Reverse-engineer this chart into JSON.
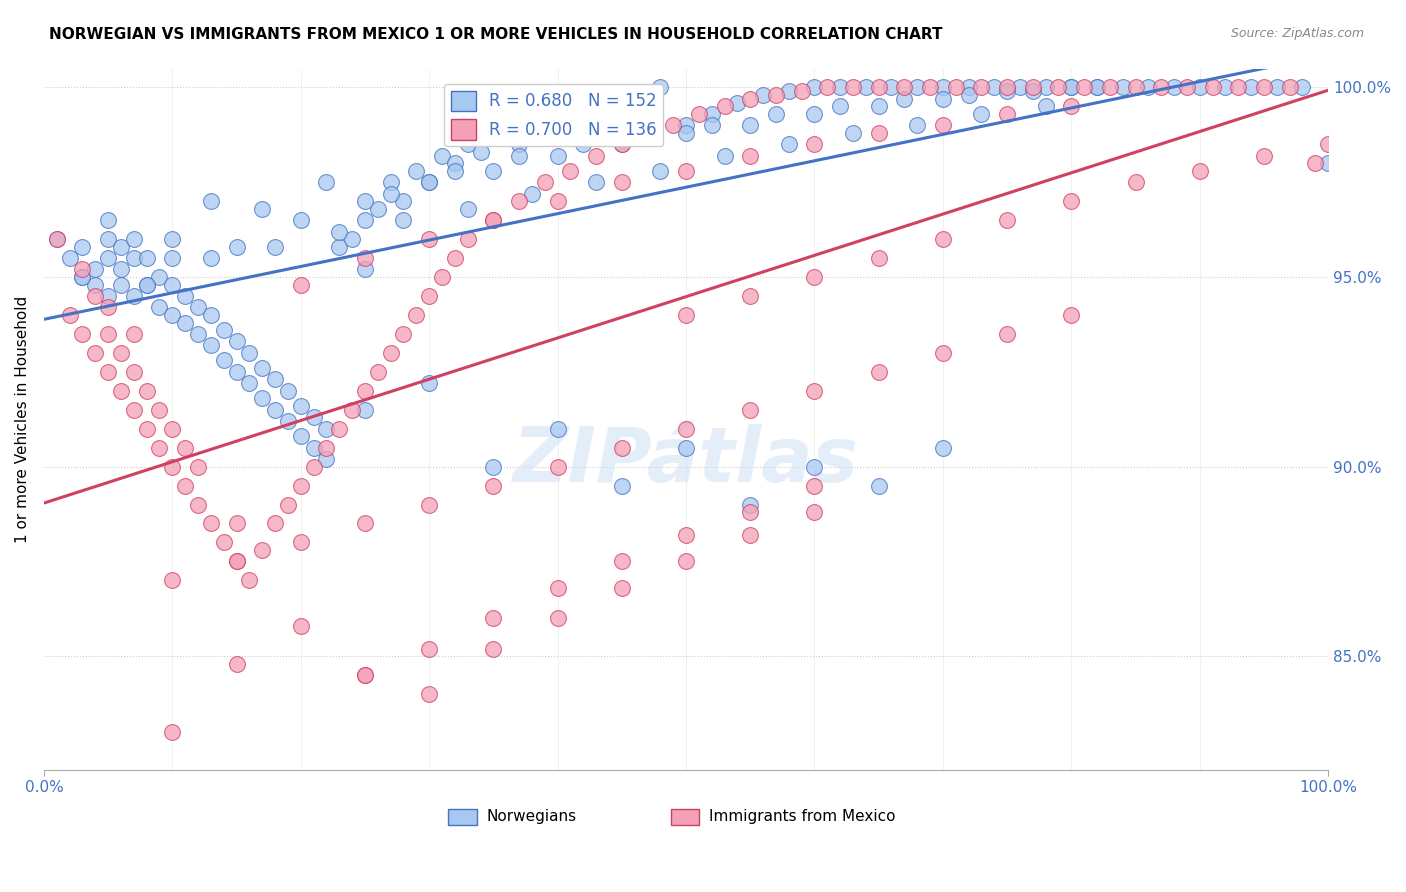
{
  "title": "NORWEGIAN VS IMMIGRANTS FROM MEXICO 1 OR MORE VEHICLES IN HOUSEHOLD CORRELATION CHART",
  "source": "Source: ZipAtlas.com",
  "ylabel": "1 or more Vehicles in Household",
  "xlim": [
    0.0,
    1.0
  ],
  "ylim": [
    0.82,
    1.005
  ],
  "ytick_values": [
    0.85,
    0.9,
    0.95,
    1.0
  ],
  "color_norwegian": "#A8C8F0",
  "color_mexico": "#F4A0B8",
  "color_trendline_norwegian": "#4472C4",
  "color_trendline_mexico": "#D04060",
  "background_color": "#FFFFFF",
  "title_fontsize": 11,
  "source_fontsize": 9,
  "norwegian_x": [
    0.01,
    0.02,
    0.03,
    0.03,
    0.04,
    0.04,
    0.05,
    0.05,
    0.05,
    0.06,
    0.06,
    0.06,
    0.07,
    0.07,
    0.07,
    0.08,
    0.08,
    0.09,
    0.09,
    0.1,
    0.1,
    0.1,
    0.11,
    0.11,
    0.12,
    0.12,
    0.13,
    0.13,
    0.14,
    0.14,
    0.15,
    0.15,
    0.16,
    0.16,
    0.17,
    0.17,
    0.18,
    0.18,
    0.19,
    0.19,
    0.2,
    0.2,
    0.21,
    0.21,
    0.22,
    0.22,
    0.23,
    0.24,
    0.25,
    0.25,
    0.26,
    0.27,
    0.28,
    0.29,
    0.3,
    0.31,
    0.32,
    0.33,
    0.34,
    0.35,
    0.36,
    0.37,
    0.38,
    0.39,
    0.4,
    0.42,
    0.44,
    0.46,
    0.48,
    0.5,
    0.52,
    0.54,
    0.56,
    0.58,
    0.6,
    0.62,
    0.64,
    0.66,
    0.68,
    0.7,
    0.72,
    0.74,
    0.76,
    0.78,
    0.8,
    0.82,
    0.84,
    0.86,
    0.88,
    0.9,
    0.92,
    0.94,
    0.96,
    0.98,
    1.0,
    0.13,
    0.17,
    0.22,
    0.27,
    0.32,
    0.37,
    0.42,
    0.47,
    0.52,
    0.57,
    0.62,
    0.67,
    0.72,
    0.77,
    0.82,
    0.05,
    0.1,
    0.15,
    0.2,
    0.25,
    0.3,
    0.35,
    0.4,
    0.45,
    0.5,
    0.55,
    0.6,
    0.65,
    0.7,
    0.75,
    0.8,
    0.03,
    0.08,
    0.13,
    0.18,
    0.23,
    0.28,
    0.33,
    0.38,
    0.43,
    0.48,
    0.53,
    0.58,
    0.63,
    0.68,
    0.73,
    0.78,
    0.25,
    0.3,
    0.35,
    0.4,
    0.45,
    0.5,
    0.55,
    0.6,
    0.65,
    0.7
  ],
  "norwegian_y": [
    0.96,
    0.955,
    0.958,
    0.95,
    0.952,
    0.948,
    0.955,
    0.945,
    0.96,
    0.952,
    0.958,
    0.948,
    0.945,
    0.955,
    0.96,
    0.948,
    0.955,
    0.942,
    0.95,
    0.94,
    0.948,
    0.955,
    0.938,
    0.945,
    0.935,
    0.942,
    0.932,
    0.94,
    0.928,
    0.936,
    0.925,
    0.933,
    0.922,
    0.93,
    0.918,
    0.926,
    0.915,
    0.923,
    0.912,
    0.92,
    0.908,
    0.916,
    0.905,
    0.913,
    0.902,
    0.91,
    0.958,
    0.96,
    0.952,
    0.965,
    0.968,
    0.975,
    0.97,
    0.978,
    0.975,
    0.982,
    0.98,
    0.985,
    0.983,
    0.988,
    0.99,
    0.985,
    0.992,
    0.995,
    0.99,
    0.996,
    0.998,
    0.995,
    1.0,
    0.99,
    0.993,
    0.996,
    0.998,
    0.999,
    1.0,
    1.0,
    1.0,
    1.0,
    1.0,
    1.0,
    1.0,
    1.0,
    1.0,
    1.0,
    1.0,
    1.0,
    1.0,
    1.0,
    1.0,
    1.0,
    1.0,
    1.0,
    1.0,
    1.0,
    0.98,
    0.97,
    0.968,
    0.975,
    0.972,
    0.978,
    0.982,
    0.985,
    0.988,
    0.99,
    0.993,
    0.995,
    0.997,
    0.998,
    0.999,
    1.0,
    0.965,
    0.96,
    0.958,
    0.965,
    0.97,
    0.975,
    0.978,
    0.982,
    0.985,
    0.988,
    0.99,
    0.993,
    0.995,
    0.997,
    0.999,
    1.0,
    0.95,
    0.948,
    0.955,
    0.958,
    0.962,
    0.965,
    0.968,
    0.972,
    0.975,
    0.978,
    0.982,
    0.985,
    0.988,
    0.99,
    0.993,
    0.995,
    0.915,
    0.922,
    0.9,
    0.91,
    0.895,
    0.905,
    0.89,
    0.9,
    0.895,
    0.905
  ],
  "mexico_x": [
    0.01,
    0.02,
    0.03,
    0.03,
    0.04,
    0.04,
    0.05,
    0.05,
    0.05,
    0.06,
    0.06,
    0.07,
    0.07,
    0.07,
    0.08,
    0.08,
    0.09,
    0.09,
    0.1,
    0.1,
    0.11,
    0.11,
    0.12,
    0.12,
    0.13,
    0.14,
    0.15,
    0.15,
    0.16,
    0.17,
    0.18,
    0.19,
    0.2,
    0.21,
    0.22,
    0.23,
    0.24,
    0.25,
    0.26,
    0.27,
    0.28,
    0.29,
    0.3,
    0.31,
    0.32,
    0.33,
    0.35,
    0.37,
    0.39,
    0.41,
    0.43,
    0.45,
    0.47,
    0.49,
    0.51,
    0.53,
    0.55,
    0.57,
    0.59,
    0.61,
    0.63,
    0.65,
    0.67,
    0.69,
    0.71,
    0.73,
    0.75,
    0.77,
    0.79,
    0.81,
    0.83,
    0.85,
    0.87,
    0.89,
    0.91,
    0.93,
    0.95,
    0.97,
    0.99,
    0.2,
    0.25,
    0.3,
    0.35,
    0.4,
    0.45,
    0.5,
    0.55,
    0.6,
    0.65,
    0.7,
    0.75,
    0.8,
    0.1,
    0.15,
    0.2,
    0.25,
    0.3,
    0.35,
    0.4,
    0.45,
    0.5,
    0.55,
    0.6,
    0.65,
    0.7,
    0.75,
    0.8,
    0.5,
    0.55,
    0.6,
    0.65,
    0.7,
    0.75,
    0.8,
    0.85,
    0.9,
    0.95,
    1.0,
    0.1,
    0.15,
    0.2,
    0.25,
    0.3,
    0.35,
    0.4,
    0.45,
    0.5,
    0.55,
    0.6,
    0.25,
    0.3,
    0.35,
    0.4,
    0.45,
    0.5,
    0.55,
    0.6
  ],
  "mexico_y": [
    0.96,
    0.94,
    0.952,
    0.935,
    0.945,
    0.93,
    0.942,
    0.925,
    0.935,
    0.93,
    0.92,
    0.915,
    0.925,
    0.935,
    0.91,
    0.92,
    0.905,
    0.915,
    0.9,
    0.91,
    0.895,
    0.905,
    0.89,
    0.9,
    0.885,
    0.88,
    0.875,
    0.885,
    0.87,
    0.878,
    0.885,
    0.89,
    0.895,
    0.9,
    0.905,
    0.91,
    0.915,
    0.92,
    0.925,
    0.93,
    0.935,
    0.94,
    0.945,
    0.95,
    0.955,
    0.96,
    0.965,
    0.97,
    0.975,
    0.978,
    0.982,
    0.985,
    0.988,
    0.99,
    0.993,
    0.995,
    0.997,
    0.998,
    0.999,
    1.0,
    1.0,
    1.0,
    1.0,
    1.0,
    1.0,
    1.0,
    1.0,
    1.0,
    1.0,
    1.0,
    1.0,
    1.0,
    1.0,
    1.0,
    1.0,
    1.0,
    1.0,
    1.0,
    0.98,
    0.948,
    0.955,
    0.96,
    0.965,
    0.97,
    0.975,
    0.978,
    0.982,
    0.985,
    0.988,
    0.99,
    0.993,
    0.995,
    0.87,
    0.875,
    0.88,
    0.885,
    0.89,
    0.895,
    0.9,
    0.905,
    0.91,
    0.915,
    0.92,
    0.925,
    0.93,
    0.935,
    0.94,
    0.94,
    0.945,
    0.95,
    0.955,
    0.96,
    0.965,
    0.97,
    0.975,
    0.978,
    0.982,
    0.985,
    0.83,
    0.848,
    0.858,
    0.845,
    0.84,
    0.852,
    0.86,
    0.868,
    0.875,
    0.882,
    0.888,
    0.845,
    0.852,
    0.86,
    0.868,
    0.875,
    0.882,
    0.888,
    0.895
  ]
}
